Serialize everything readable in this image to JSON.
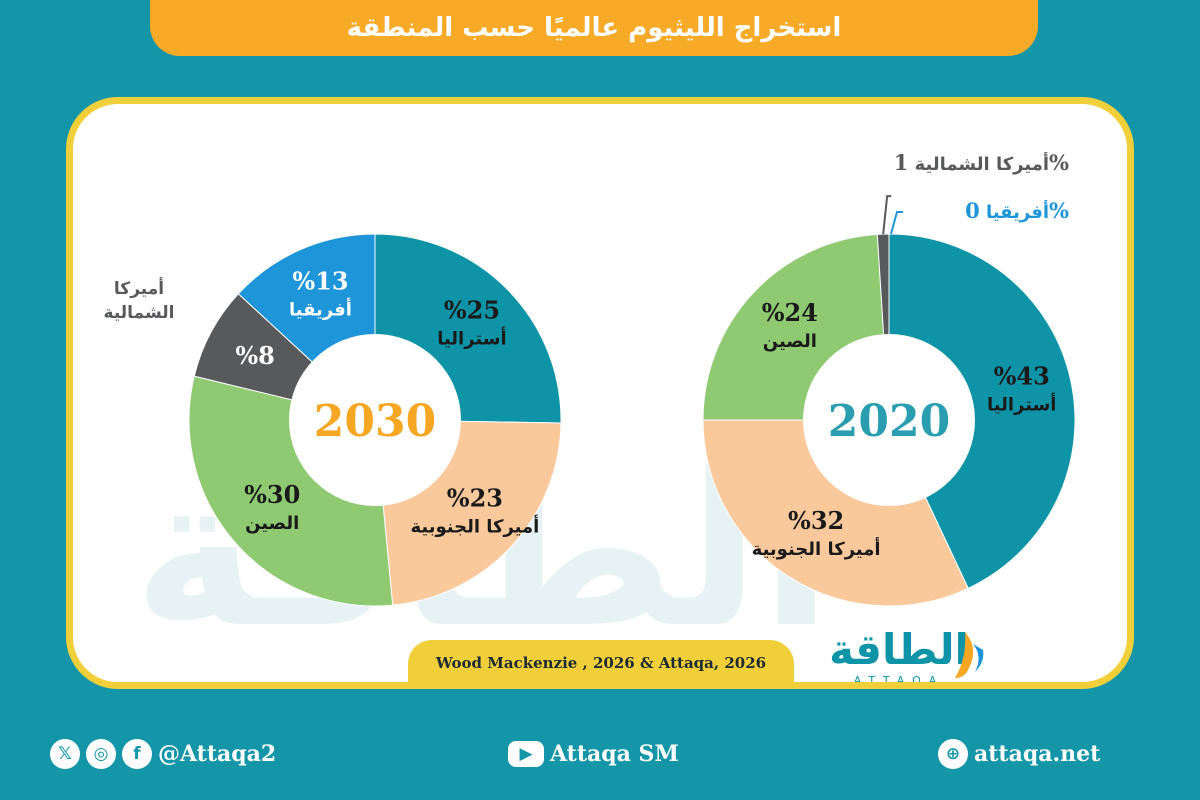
{
  "title": "استخراج الليثيوم عالميًا حسب المنطقة",
  "source": "Wood Mackenzie , 2026 & Attaqa, 2026",
  "logo": {
    "arabic": "الطاقة",
    "latin": "ATTAQA"
  },
  "footer": {
    "social_handle": "@Attaqa2",
    "youtube": "Attaqa SM",
    "website": "attaqa.net"
  },
  "colors": {
    "australia": "#0e93a7",
    "south_america": "#f9c99c",
    "china": "#8fc972",
    "north_america": "#58595b",
    "africa": "#1d95d8",
    "year_2030": "#f5a623",
    "year_2020": "#2a9db0",
    "title_bar": "#f7a928",
    "frame": "#f0cf3a"
  },
  "chart_data": [
    {
      "type": "pie",
      "year_label": "2030",
      "slices": [
        {
          "key": "australia",
          "label": "أستراليا",
          "value": 25,
          "value_text": "%25"
        },
        {
          "key": "south_america",
          "label": "أميركا الجنوبية",
          "value": 23,
          "value_text": "%23"
        },
        {
          "key": "china",
          "label": "الصين",
          "value": 30,
          "value_text": "%30"
        },
        {
          "key": "north_america",
          "label": "أميركا الشمالية",
          "value": 8,
          "value_text": "%8"
        },
        {
          "key": "africa",
          "label": "أفريقيا",
          "value": 13,
          "value_text": "%13"
        }
      ]
    },
    {
      "type": "pie",
      "year_label": "2020",
      "slices": [
        {
          "key": "australia",
          "label": "أستراليا",
          "value": 43,
          "value_text": "%43"
        },
        {
          "key": "south_america",
          "label": "أميركا الجنوبية",
          "value": 32,
          "value_text": "%32"
        },
        {
          "key": "china",
          "label": "الصين",
          "value": 24,
          "value_text": "%24"
        },
        {
          "key": "north_america",
          "label": "أميركا الشمالية",
          "value": 1,
          "value_text": "1%"
        },
        {
          "key": "africa",
          "label": "أفريقيا",
          "value": 0,
          "value_text": "0%"
        }
      ]
    }
  ]
}
